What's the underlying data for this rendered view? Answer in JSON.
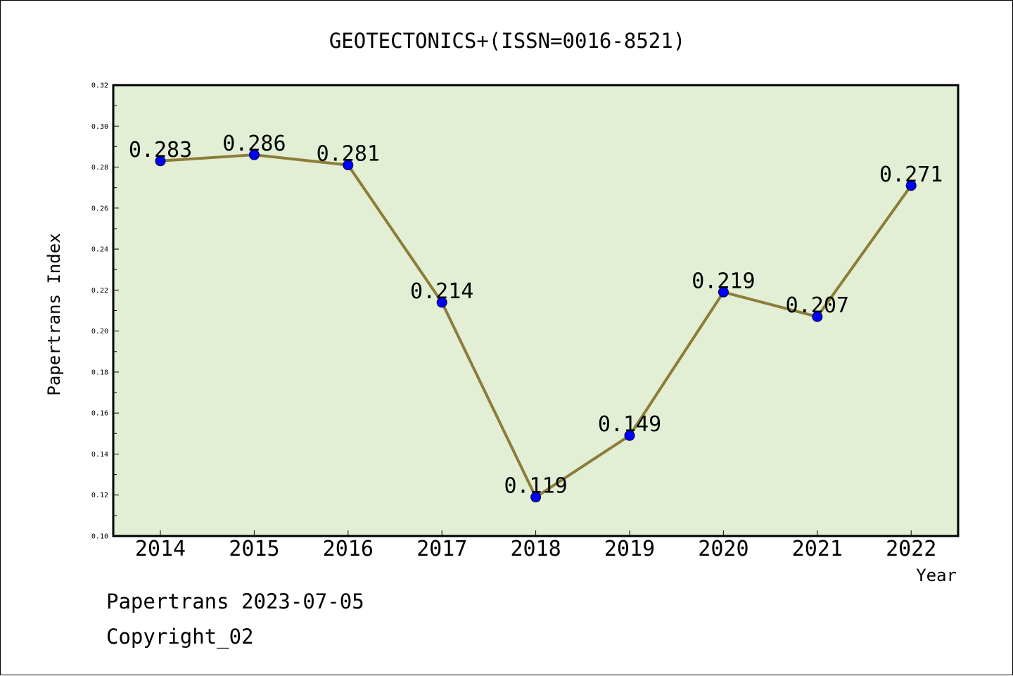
{
  "chart_data": {
    "type": "line",
    "title": "GEOTECTONICS+(ISSN=0016-8521)",
    "xlabel": "Year",
    "ylabel": "Papertrans Index",
    "categories": [
      "2014",
      "2015",
      "2016",
      "2017",
      "2018",
      "2019",
      "2020",
      "2021",
      "2022"
    ],
    "series": [
      {
        "values": [
          0.283,
          0.286,
          0.281,
          0.214,
          0.119,
          0.149,
          0.219,
          0.207,
          0.271
        ],
        "labels": [
          "0.283",
          "0.286",
          "0.281",
          "0.214",
          "0.119",
          "0.149",
          "0.219",
          "0.207",
          "0.271"
        ]
      }
    ],
    "ylim": [
      0.1,
      0.32
    ],
    "yticks": [
      "0.10",
      "0.12",
      "0.14",
      "0.16",
      "0.18",
      "0.20",
      "0.22",
      "0.24",
      "0.26",
      "0.28",
      "0.30",
      "0.32"
    ],
    "grid": false,
    "colors": {
      "plot_background": "#e2efd5",
      "line": "#8b7d3a",
      "marker": "#0000ff"
    }
  },
  "footer": {
    "line1": "Papertrans 2023-07-05",
    "line2": "Copyright_02"
  }
}
